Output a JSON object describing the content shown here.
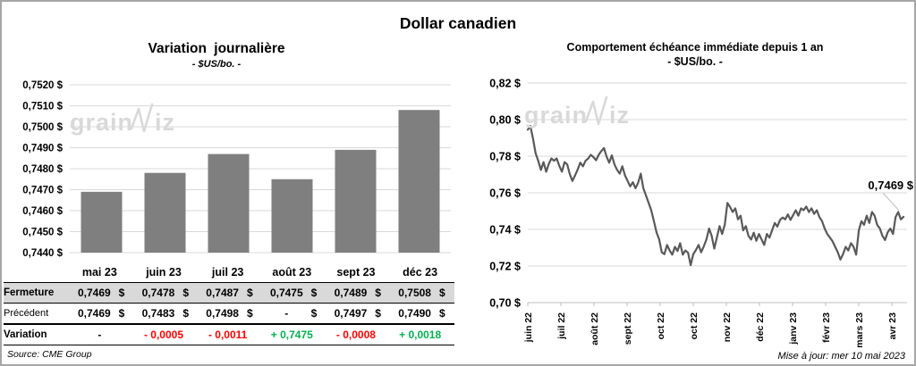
{
  "title": "Dollar canadien",
  "watermark": {
    "part1": "grain",
    "part2": "iz"
  },
  "colors": {
    "red": "#ff0000",
    "green": "#00b050",
    "black": "#000000",
    "bar": "#7f7f7f",
    "line": "#595959",
    "grid": "#d9d9d9",
    "axis": "#bfbfbf",
    "band": "#d9d9d9",
    "frame": "#a6a6a6",
    "watermark": "#d9d9d9"
  },
  "left": {
    "title": "Variation  journalière",
    "subtitle": "- $US/bo. -",
    "source": "Source: CME Group",
    "table": {
      "columns": [
        "mai 23",
        "juin 23",
        "juil 23",
        "août 23",
        "sept 23",
        "déc 23"
      ],
      "rows": [
        {
          "label": "Fermeture",
          "bold_label": true,
          "currency": "$",
          "values": [
            "0,7469",
            "0,7478",
            "0,7487",
            "0,7475",
            "0,7489",
            "0,7508"
          ]
        },
        {
          "label": "Précédent",
          "bold_label": false,
          "currency": "$",
          "values": [
            "0,7469",
            "0,7483",
            "0,7498",
            "-",
            "0,7497",
            "0,7490"
          ]
        },
        {
          "label": "Variation",
          "bold_label": true,
          "values": [
            "-",
            "- 0,0005",
            "- 0,0011",
            "+ 0,7475",
            "- 0,0008",
            "+ 0,0018"
          ],
          "value_colors": [
            "black",
            "red",
            "red",
            "green",
            "red",
            "green"
          ]
        }
      ]
    }
  },
  "right": {
    "title": "Comportement échéance immédiate depuis 1 an",
    "subtitle": "- $US/bo. -",
    "updated": "Mise à jour: mer 10 mai 2023",
    "annotation": "0,7469 $"
  },
  "chart_data": [
    {
      "type": "bar",
      "title": "Variation journalière",
      "subtitle": "- $US/bo. -",
      "categories": [
        "mai 23",
        "juin 23",
        "juil 23",
        "août 23",
        "sept 23",
        "déc 23"
      ],
      "values": [
        0.7469,
        0.7478,
        0.7487,
        0.7475,
        0.7489,
        0.7508
      ],
      "ylim": [
        0.744,
        0.752
      ],
      "ytick_step": 0.001,
      "ytick_format": "0,0000 $ (french decimal comma)",
      "grid": true,
      "legend": "none",
      "xlabel": "",
      "ylabel": ""
    },
    {
      "type": "line",
      "title": "Comportement échéance immédiate depuis 1 an",
      "subtitle": "- $US/bo. -",
      "x_labels": [
        "juin 22",
        "juil 22",
        "août 22",
        "sept 22",
        "oct 22",
        "oct 22",
        "nov 22",
        "déc 22",
        "janv 23",
        "févr 23",
        "mars 23",
        "avr 23"
      ],
      "ylim": [
        0.7,
        0.82
      ],
      "ytick_step": 0.02,
      "grid": true,
      "legend": "none",
      "last_value_label": "0,7469 $",
      "values": [
        0.7945,
        0.7965,
        0.7895,
        0.7815,
        0.7775,
        0.7725,
        0.7768,
        0.7715,
        0.7758,
        0.7788,
        0.7775,
        0.7788,
        0.7748,
        0.7715,
        0.7768,
        0.7755,
        0.7702,
        0.7665,
        0.7695,
        0.7728,
        0.7765,
        0.7745,
        0.7775,
        0.7788,
        0.7808,
        0.7795,
        0.7778,
        0.7808,
        0.7828,
        0.7845,
        0.7798,
        0.7765,
        0.7805,
        0.7755,
        0.7725,
        0.7705,
        0.7745,
        0.7695,
        0.7665,
        0.7635,
        0.7658,
        0.7625,
        0.7655,
        0.7705,
        0.7625,
        0.7585,
        0.7545,
        0.7505,
        0.7445,
        0.7385,
        0.7345,
        0.7275,
        0.7265,
        0.7315,
        0.7285,
        0.7262,
        0.7305,
        0.7282,
        0.7325,
        0.7262,
        0.7285,
        0.7272,
        0.7205,
        0.7265,
        0.7288,
        0.7315,
        0.7275,
        0.7308,
        0.7345,
        0.7405,
        0.7365,
        0.7295,
        0.7358,
        0.7418,
        0.7375,
        0.7428,
        0.7545,
        0.7522,
        0.7495,
        0.7515,
        0.7455,
        0.7475,
        0.7395,
        0.7418,
        0.7365,
        0.7345,
        0.7382,
        0.7338,
        0.7375,
        0.7345,
        0.7315,
        0.7375,
        0.7355,
        0.7395,
        0.7435,
        0.7415,
        0.7452,
        0.7465,
        0.7455,
        0.7482,
        0.7452,
        0.7478,
        0.7505,
        0.7475,
        0.7515,
        0.7505,
        0.7525,
        0.7495,
        0.7515,
        0.7485,
        0.7505,
        0.7468,
        0.7445,
        0.7405,
        0.7375,
        0.7355,
        0.7335,
        0.7305,
        0.7275,
        0.7235,
        0.7265,
        0.7305,
        0.7285,
        0.7325,
        0.7305,
        0.7262,
        0.7395,
        0.7445,
        0.7425,
        0.7475,
        0.7435,
        0.7495,
        0.7475,
        0.7425,
        0.7405,
        0.7365,
        0.7342,
        0.7385,
        0.7405,
        0.7375,
        0.7468,
        0.7495,
        0.7455,
        0.7469
      ]
    }
  ]
}
